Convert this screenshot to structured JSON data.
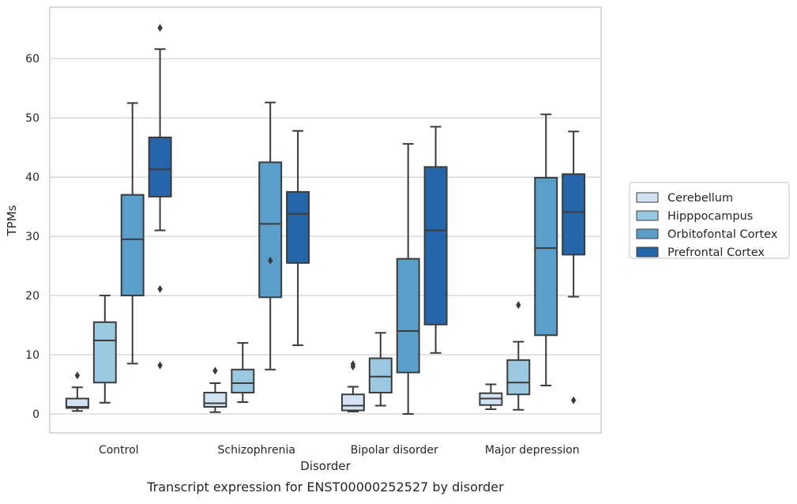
{
  "chart_data": {
    "type": "box",
    "xlabel": "Disorder",
    "ylabel": "TPMs",
    "caption": "Transcript expression for ENST00000252527 by disorder",
    "ylim": [
      -3.2,
      68.7
    ],
    "yticks": [
      0,
      10,
      20,
      30,
      40,
      50,
      60
    ],
    "grid": "horizontal",
    "legend_position": "right",
    "categories": [
      "Control",
      "Schizophrenia",
      "Bipolar disorder",
      "Major depression"
    ],
    "series": [
      {
        "name": "Cerebellum",
        "color": "#d1e2f2",
        "boxes": [
          {
            "whisker_low": 0.5,
            "q1": 1.0,
            "median": 1.2,
            "q3": 2.6,
            "whisker_high": 4.5,
            "outliers": [
              6.5
            ]
          },
          {
            "whisker_low": 0.3,
            "q1": 1.2,
            "median": 1.8,
            "q3": 3.6,
            "whisker_high": 5.2,
            "outliers": [
              7.3
            ]
          },
          {
            "whisker_low": 0.4,
            "q1": 0.6,
            "median": 1.4,
            "q3": 3.3,
            "whisker_high": 4.6,
            "outliers": [
              8.0,
              8.4
            ]
          },
          {
            "whisker_low": 0.8,
            "q1": 1.5,
            "median": 2.6,
            "q3": 3.5,
            "whisker_high": 5.0,
            "outliers": []
          }
        ]
      },
      {
        "name": "Hipppocampus",
        "color": "#9ac8e0",
        "boxes": [
          {
            "whisker_low": 1.9,
            "q1": 5.3,
            "median": 12.4,
            "q3": 15.5,
            "whisker_high": 20.0,
            "outliers": []
          },
          {
            "whisker_low": 2.0,
            "q1": 3.6,
            "median": 5.2,
            "q3": 7.5,
            "whisker_high": 12.0,
            "outliers": []
          },
          {
            "whisker_low": 1.4,
            "q1": 3.6,
            "median": 6.3,
            "q3": 9.4,
            "whisker_high": 13.7,
            "outliers": []
          },
          {
            "whisker_low": 0.7,
            "q1": 3.3,
            "median": 5.3,
            "q3": 9.1,
            "whisker_high": 12.2,
            "outliers": [
              18.4
            ]
          }
        ]
      },
      {
        "name": "Orbitofontal Cortex",
        "color": "#5a9fca",
        "boxes": [
          {
            "whisker_low": 8.5,
            "q1": 20.0,
            "median": 29.5,
            "q3": 37.0,
            "whisker_high": 52.5,
            "outliers": []
          },
          {
            "whisker_low": 7.5,
            "q1": 19.7,
            "median": 32.1,
            "q3": 42.5,
            "whisker_high": 52.6,
            "outliers": [
              25.9
            ]
          },
          {
            "whisker_low": 0.0,
            "q1": 7.0,
            "median": 14.0,
            "q3": 26.2,
            "whisker_high": 45.6,
            "outliers": []
          },
          {
            "whisker_low": 4.8,
            "q1": 13.3,
            "median": 28.0,
            "q3": 39.9,
            "whisker_high": 50.6,
            "outliers": []
          }
        ]
      },
      {
        "name": "Prefrontal Cortex",
        "color": "#2565a9",
        "boxes": [
          {
            "whisker_low": 31.0,
            "q1": 36.7,
            "median": 41.3,
            "q3": 46.7,
            "whisker_high": 61.6,
            "outliers": [
              65.2,
              21.1,
              8.2
            ]
          },
          {
            "whisker_low": 11.6,
            "q1": 25.5,
            "median": 33.8,
            "q3": 37.5,
            "whisker_high": 47.8,
            "outliers": []
          },
          {
            "whisker_low": 10.3,
            "q1": 15.1,
            "median": 31.0,
            "q3": 41.7,
            "whisker_high": 48.5,
            "outliers": []
          },
          {
            "whisker_low": 19.8,
            "q1": 26.9,
            "median": 34.1,
            "q3": 40.5,
            "whisker_high": 47.7,
            "outliers": [
              2.3
            ]
          }
        ]
      }
    ]
  }
}
